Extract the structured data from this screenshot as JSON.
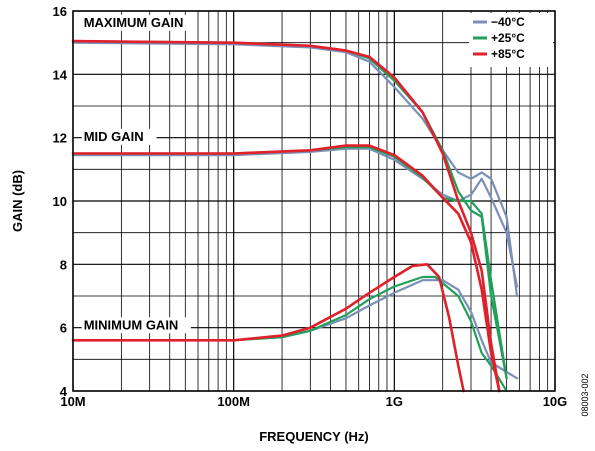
{
  "chart_data": {
    "type": "line",
    "xlabel": "FREQUENCY (Hz)",
    "ylabel": "GAIN (dB)",
    "x_scale": "log",
    "xlim": [
      10000000,
      10000000000
    ],
    "ylim": [
      4,
      16
    ],
    "grid": true,
    "legend_position": "top-right",
    "x_ticks": [
      {
        "value": 10000000,
        "label": "10M"
      },
      {
        "value": 100000000,
        "label": "100M"
      },
      {
        "value": 1000000000,
        "label": "1G"
      },
      {
        "value": 10000000000,
        "label": "10G"
      }
    ],
    "y_ticks": [
      {
        "value": 4,
        "label": "4"
      },
      {
        "value": 6,
        "label": "6"
      },
      {
        "value": 8,
        "label": "8"
      },
      {
        "value": 10,
        "label": "10"
      },
      {
        "value": 12,
        "label": "12"
      },
      {
        "value": 14,
        "label": "14"
      },
      {
        "value": 16,
        "label": "16"
      }
    ],
    "annotations": [
      {
        "text": "MAXIMUM GAIN",
        "x": 12000000,
        "y": 15.5
      },
      {
        "text": "MID GAIN",
        "x": 12000000,
        "y": 11.9
      },
      {
        "text": "MINIMUM GAIN",
        "x": 12000000,
        "y": 5.95
      }
    ],
    "legend": [
      {
        "name": "−40°C",
        "color": "#7b8fb8"
      },
      {
        "name": "+25°C",
        "color": "#21a05a"
      },
      {
        "name": "+85°C",
        "color": "#e0202a"
      }
    ],
    "series": [
      {
        "name": "−40°C",
        "gain_setting": "MAXIMUM GAIN",
        "color": "#7b8fb8",
        "x": [
          10000000,
          100000000,
          300000000,
          500000000,
          700000000,
          1000000000,
          1500000000,
          2000000000,
          2500000000,
          3000000000,
          3500000000,
          4000000000,
          5000000000,
          5800000000
        ],
        "y": [
          15.0,
          14.95,
          14.85,
          14.7,
          14.4,
          13.6,
          12.6,
          11.6,
          10.9,
          10.7,
          10.9,
          10.7,
          9.5,
          7.0
        ]
      },
      {
        "name": "+25°C",
        "gain_setting": "MAXIMUM GAIN",
        "color": "#21a05a",
        "x": [
          10000000,
          100000000,
          300000000,
          500000000,
          700000000,
          1000000000,
          1500000000,
          2000000000,
          2500000000,
          3000000000,
          3500000000,
          4000000000,
          5000000000
        ],
        "y": [
          15.05,
          15.0,
          14.9,
          14.75,
          14.5,
          13.8,
          12.8,
          11.6,
          10.3,
          9.7,
          9.5,
          7.0,
          4.4
        ]
      },
      {
        "name": "+85°C",
        "gain_setting": "MAXIMUM GAIN",
        "color": "#e0202a",
        "x": [
          10000000,
          100000000,
          300000000,
          500000000,
          700000000,
          1000000000,
          1500000000,
          2000000000,
          2500000000,
          3000000000,
          3500000000,
          4000000000,
          4500000000
        ],
        "y": [
          15.05,
          15.0,
          14.9,
          14.75,
          14.55,
          13.9,
          12.8,
          11.5,
          10.0,
          9.0,
          7.8,
          5.5,
          4.0
        ]
      },
      {
        "name": "−40°C",
        "gain_setting": "MID GAIN",
        "color": "#7b8fb8",
        "x": [
          10000000,
          100000000,
          300000000,
          500000000,
          700000000,
          1000000000,
          1500000000,
          2000000000,
          2500000000,
          3000000000,
          3500000000,
          4000000000,
          5000000000,
          5800000000
        ],
        "y": [
          11.45,
          11.45,
          11.55,
          11.65,
          11.65,
          11.3,
          10.7,
          10.2,
          10.0,
          10.2,
          10.7,
          10.1,
          9.0,
          7.3
        ]
      },
      {
        "name": "+25°C",
        "gain_setting": "MID GAIN",
        "color": "#21a05a",
        "x": [
          10000000,
          100000000,
          300000000,
          500000000,
          700000000,
          1000000000,
          1500000000,
          2000000000,
          2500000000,
          3000000000,
          3500000000,
          4000000000,
          5000000000
        ],
        "y": [
          11.5,
          11.5,
          11.6,
          11.7,
          11.7,
          11.4,
          10.75,
          10.1,
          10.0,
          10.0,
          9.6,
          7.5,
          4.4
        ]
      },
      {
        "name": "+85°C",
        "gain_setting": "MID GAIN",
        "color": "#e0202a",
        "x": [
          10000000,
          100000000,
          300000000,
          500000000,
          700000000,
          1000000000,
          1500000000,
          2000000000,
          2500000000,
          3000000000,
          3500000000,
          4000000000,
          4500000000
        ],
        "y": [
          11.5,
          11.5,
          11.6,
          11.75,
          11.75,
          11.45,
          10.8,
          10.1,
          9.6,
          8.7,
          7.2,
          5.2,
          4.0
        ]
      },
      {
        "name": "−40°C",
        "gain_setting": "MINIMUM GAIN",
        "color": "#7b8fb8",
        "x": [
          10000000,
          100000000,
          200000000,
          300000000,
          500000000,
          700000000,
          1000000000,
          1500000000,
          2000000000,
          2500000000,
          3000000000,
          3500000000,
          4000000000,
          5000000000,
          5800000000
        ],
        "y": [
          5.6,
          5.6,
          5.7,
          5.9,
          6.3,
          6.7,
          7.1,
          7.5,
          7.5,
          7.2,
          6.5,
          5.6,
          4.9,
          4.6,
          4.4
        ]
      },
      {
        "name": "+25°C",
        "gain_setting": "MINIMUM GAIN",
        "color": "#21a05a",
        "x": [
          10000000,
          100000000,
          200000000,
          300000000,
          500000000,
          700000000,
          1000000000,
          1500000000,
          1800000000,
          2500000000,
          3000000000,
          3500000000,
          4000000000,
          5000000000
        ],
        "y": [
          5.6,
          5.6,
          5.7,
          5.9,
          6.4,
          6.9,
          7.3,
          7.6,
          7.6,
          7.0,
          6.2,
          5.2,
          4.8,
          4.0
        ]
      },
      {
        "name": "+85°C",
        "gain_setting": "MINIMUM GAIN",
        "color": "#e0202a",
        "x": [
          10000000,
          100000000,
          200000000,
          300000000,
          500000000,
          700000000,
          1000000000,
          1300000000,
          1600000000,
          1900000000,
          2200000000,
          2500000000,
          2700000000
        ],
        "y": [
          5.6,
          5.6,
          5.75,
          6.0,
          6.6,
          7.1,
          7.6,
          7.95,
          8.0,
          7.6,
          6.3,
          4.8,
          4.0
        ]
      }
    ]
  },
  "figure_code": "08003-002"
}
